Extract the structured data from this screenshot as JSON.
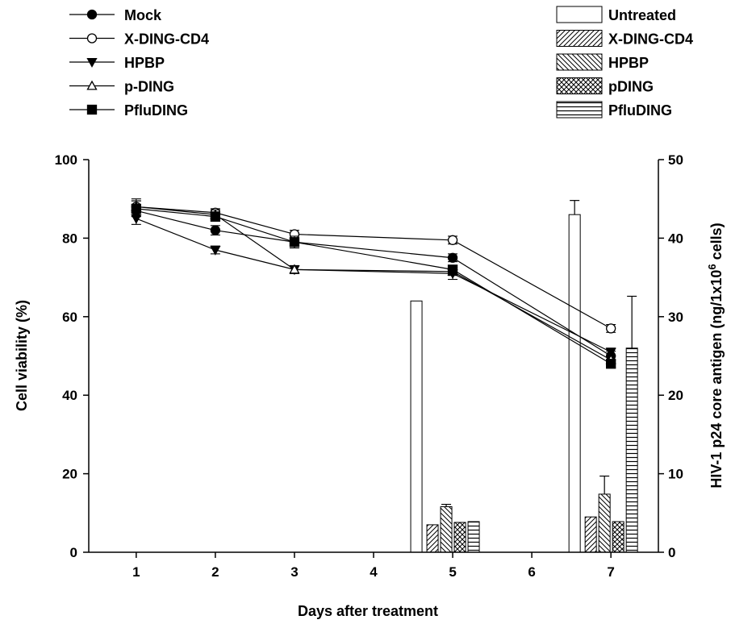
{
  "chart_data": {
    "type": "combo",
    "xlabel": "Days after treatment",
    "ylabel_left": "Cell viability (%)",
    "ylabel_right": "HIV-1 p24 core antigen (ng/1x10",
    "ylabel_right_sup": "6",
    "ylabel_right_tail": " cells)",
    "xlim": [
      0.4,
      7.6
    ],
    "ylim_left": [
      0,
      100
    ],
    "ylim_right": [
      0,
      50
    ],
    "x_ticks": [
      "1",
      "2",
      "3",
      "4",
      "5",
      "6",
      "7"
    ],
    "y_left_ticks": [
      "0",
      "20",
      "40",
      "60",
      "80",
      "100"
    ],
    "y_right_ticks": [
      "0",
      "10",
      "20",
      "30",
      "40",
      "50"
    ],
    "grid": false,
    "legend_lines_placement": "top-left",
    "legend_bars_placement": "top-right",
    "line_series": [
      {
        "name": "Mock",
        "marker": "filled-circle",
        "x": [
          1,
          2,
          3,
          5,
          7
        ],
        "y": [
          87,
          82,
          79,
          75,
          50
        ],
        "err": [
          1.5,
          1.2,
          1.0,
          1.0,
          1.2
        ]
      },
      {
        "name": "X-DING-CD4",
        "marker": "open-circle",
        "x": [
          1,
          2,
          3,
          5,
          7
        ],
        "y": [
          88,
          86.5,
          81,
          79.5,
          57
        ],
        "err": [
          1.5,
          1.0,
          1.0,
          1.0,
          1.0
        ]
      },
      {
        "name": "HPBP",
        "marker": "filled-triangle-down",
        "x": [
          1,
          2,
          3,
          5,
          7
        ],
        "y": [
          85,
          77,
          72,
          71,
          51
        ],
        "err": [
          1.5,
          1.0,
          1.0,
          1.5,
          1.0
        ]
      },
      {
        "name": "p-DING",
        "marker": "open-triangle-up",
        "x": [
          1,
          2,
          3,
          5,
          7
        ],
        "y": [
          88,
          86,
          72,
          71.5,
          49
        ],
        "err": [
          2.0,
          1.2,
          1.0,
          1.0,
          1.0
        ]
      },
      {
        "name": "PfluDING",
        "marker": "filled-square",
        "x": [
          1,
          2,
          3,
          5,
          7
        ],
        "y": [
          87.5,
          85.5,
          79,
          72,
          48
        ],
        "err": [
          2.0,
          1.2,
          1.5,
          1.0,
          1.0
        ]
      }
    ],
    "bar_series": [
      {
        "name": "Untreated",
        "pattern": "empty",
        "values": {
          "5": 32,
          "7": 43
        },
        "err": {
          "5": 0,
          "7": 1.8
        }
      },
      {
        "name": "X-DING-CD4",
        "pattern": "diag-right",
        "values": {
          "5": 3.5,
          "7": 4.5
        },
        "err": {
          "5": 0,
          "7": 0
        }
      },
      {
        "name": "HPBP",
        "pattern": "diag-left",
        "values": {
          "5": 5.8,
          "7": 7.4
        },
        "err": {
          "5": 0.3,
          "7": 2.3
        }
      },
      {
        "name": "pDING",
        "pattern": "crosshatch",
        "values": {
          "5": 3.8,
          "7": 3.9
        },
        "err": {
          "5": 0,
          "7": 0
        }
      },
      {
        "name": "PfluDING",
        "pattern": "horizontal",
        "values": {
          "5": 3.9,
          "7": 26
        },
        "err": {
          "5": 0,
          "7": 6.6
        }
      }
    ]
  }
}
